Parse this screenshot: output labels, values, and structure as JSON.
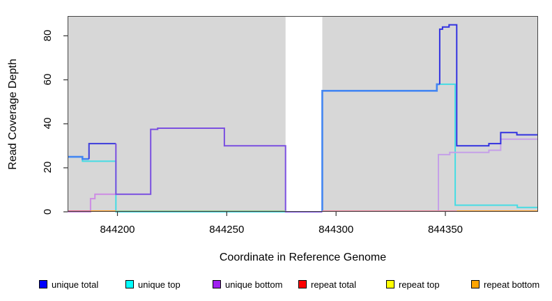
{
  "figure": {
    "xlabel": "Coordinate in Reference Genome",
    "ylabel": "Read Coverage Depth"
  },
  "chart_data": {
    "type": "line",
    "subtype": "step-coverage",
    "title": "",
    "xlabel": "Coordinate in Reference Genome",
    "ylabel": "Read Coverage Depth",
    "xlim": [
      844177.2,
      844392.4
    ],
    "ylim": [
      0,
      89
    ],
    "x_ticks": [
      844200,
      844250,
      844300,
      844350
    ],
    "x_tick_labels": [
      "844200",
      "844250",
      "844300",
      "844350"
    ],
    "y_ticks": [
      0,
      20,
      40,
      60,
      80
    ],
    "y_tick_labels": [
      "0",
      "20",
      "40",
      "60",
      "80"
    ],
    "plot_bg": "#d7d7d7",
    "gap_region": {
      "x0": 844276.9,
      "x1": 844293.7,
      "color": "#ffffff"
    },
    "series_notes": "values are read-depth step levels; runs carry blended on-screen colors",
    "series": [
      {
        "name": "unique top",
        "legend_color": "#00ffff",
        "runs": [
          {
            "color": "#45dce4",
            "width": 2,
            "pts": [
              [
                844177.2,
                25
              ],
              [
                844184,
                23
              ],
              [
                844199.3,
                23
              ],
              [
                844199.3,
                0
              ]
            ],
            "end": 844276.9
          },
          {
            "color": "#45dce4",
            "width": 2,
            "pts": [
              [
                844293.7,
                0
              ],
              [
                844293.7,
                55
              ],
              [
                844346.1,
                55
              ],
              [
                844346.1,
                58
              ],
              [
                844354.5,
                58
              ],
              [
                844354.5,
                3
              ],
              [
                844382.9,
                3
              ],
              [
                844382.9,
                2
              ]
            ],
            "end": 844392.4
          }
        ]
      },
      {
        "name": "unique bottom",
        "legend_color": "#a020f0",
        "runs": [
          {
            "color": "#cd8ce4",
            "width": 2,
            "pts": [
              [
                844177.2,
                0
              ],
              [
                844187.7,
                0
              ],
              [
                844187.7,
                6
              ],
              [
                844189.7,
                6
              ],
              [
                844189.7,
                8
              ]
            ],
            "end": 844199.3
          },
          {
            "color": "#c5a0e8",
            "width": 2,
            "pts": [
              [
                844346.8,
                0
              ],
              [
                844346.8,
                26
              ],
              [
                844352,
                26
              ],
              [
                844352,
                27
              ],
              [
                844369.9,
                27
              ],
              [
                844369.9,
                28
              ],
              [
                844375.3,
                28
              ],
              [
                844375.3,
                33
              ]
            ],
            "end": 844392.4
          }
        ]
      },
      {
        "name": "unique total",
        "legend_color": "#0000ff",
        "runs": [
          {
            "color": "#4386f2",
            "width": 2.6,
            "pts": [
              [
                844177.2,
                25
              ],
              [
                844184,
                24
              ]
            ],
            "end": 844187
          },
          {
            "color": "#3c3cdb",
            "width": 2,
            "pts": [
              [
                844187,
                24
              ],
              [
                844187,
                31
              ]
            ],
            "end": 844199.3
          },
          {
            "color": "#7a4fe0",
            "width": 2,
            "pts": [
              [
                844199.3,
                31
              ],
              [
                844199.3,
                8
              ],
              [
                844215.2,
                8
              ],
              [
                844215.2,
                37.5
              ],
              [
                844218.4,
                37.5
              ],
              [
                844218.4,
                38
              ],
              [
                844248.9,
                38
              ],
              [
                844248.9,
                30
              ],
              [
                844276.9,
                30
              ],
              [
                844276.9,
                0
              ]
            ],
            "end": 844293.7
          },
          {
            "color": "#4386f2",
            "width": 2.6,
            "pts": [
              [
                844293.7,
                0
              ],
              [
                844293.7,
                55
              ],
              [
                844346.1,
                55
              ],
              [
                844346.1,
                58
              ]
            ],
            "end": 844347.4
          },
          {
            "color": "#3232e0",
            "width": 2,
            "pts": [
              [
                844347.4,
                58
              ],
              [
                844347.4,
                83
              ],
              [
                844348.7,
                83
              ],
              [
                844348.7,
                84
              ],
              [
                844351.7,
                84
              ],
              [
                844351.7,
                85
              ],
              [
                844355.2,
                85
              ],
              [
                844355.2,
                30
              ],
              [
                844369.9,
                30
              ],
              [
                844369.9,
                31
              ],
              [
                844375.3,
                31
              ],
              [
                844375.3,
                36
              ],
              [
                844382.7,
                36
              ],
              [
                844382.7,
                35
              ]
            ],
            "end": 844392.4
          }
        ]
      },
      {
        "name": "repeat total",
        "legend_color": "#ff0000",
        "runs": []
      },
      {
        "name": "repeat top",
        "legend_color": "#ffff00",
        "runs": []
      },
      {
        "name": "repeat bottom",
        "legend_color": "#ffa500",
        "runs": []
      }
    ],
    "zero_line_segments": [
      {
        "x0": 844177.2,
        "x1": 844187.7,
        "color": "#e8638c"
      },
      {
        "x0": 844187.7,
        "x1": 844199.3,
        "color": "#ff9a1e"
      },
      {
        "x0": 844199.3,
        "x1": 844276.9,
        "color": "#90cf90"
      },
      {
        "x0": 844293.7,
        "x1": 844355.2,
        "color": "#ec7e96"
      },
      {
        "x0": 844355.2,
        "x1": 844392.4,
        "color": "#ff9a1e"
      }
    ],
    "legend_position": "bottom",
    "legend": [
      {
        "label": "unique total",
        "color": "#0000ff"
      },
      {
        "label": "unique top",
        "color": "#00ffff"
      },
      {
        "label": "unique bottom",
        "color": "#a020f0"
      },
      {
        "label": "repeat total",
        "color": "#ff0000"
      },
      {
        "label": "repeat top",
        "color": "#ffff00"
      },
      {
        "label": "repeat bottom",
        "color": "#ffa500"
      }
    ]
  }
}
